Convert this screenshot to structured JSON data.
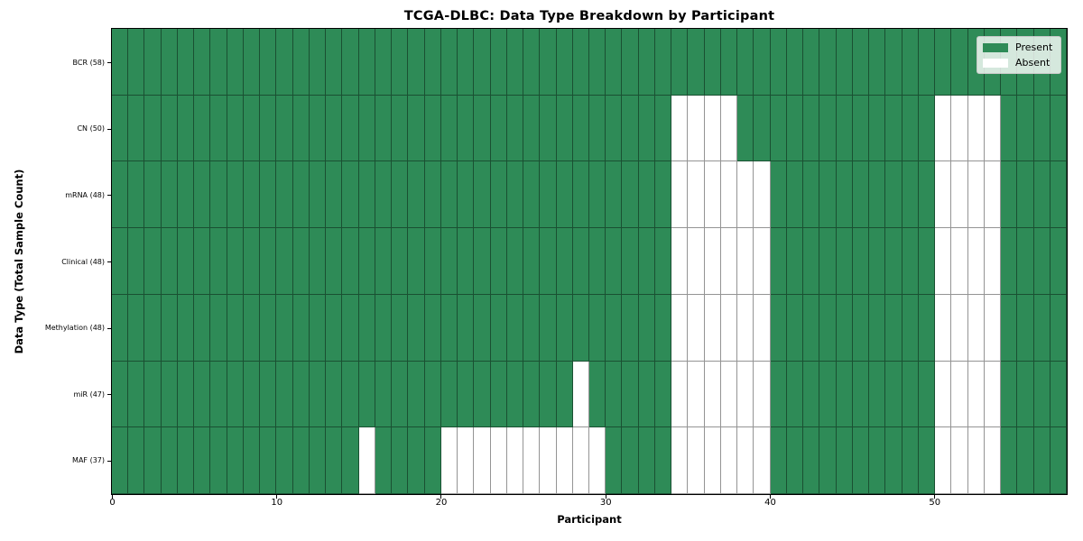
{
  "title": "TCGA-DLBC: Data Type Breakdown by Participant",
  "legend": {
    "present_label": "Present",
    "absent_label": "Absent"
  },
  "chart_data": {
    "type": "heatmap",
    "title": "TCGA-DLBC: Data Type Breakdown by Participant",
    "xlabel": "Participant",
    "ylabel": "Data Type (Total Sample Count)",
    "n_participants": 58,
    "x_range": [
      0,
      58
    ],
    "x_ticks": [
      0,
      10,
      20,
      30,
      40,
      50
    ],
    "grid": true,
    "legend_position": "upper right",
    "colors": {
      "present": "#2e8b57",
      "absent": "#ffffff"
    },
    "legend_entries": [
      {
        "label": "Present",
        "color": "#2e8b57"
      },
      {
        "label": "Absent",
        "color": "#ffffff"
      }
    ],
    "rows": [
      {
        "label": "BCR (58)",
        "data_type": "BCR",
        "present_count": 58,
        "absent_participants": []
      },
      {
        "label": "CN (50)",
        "data_type": "CN",
        "present_count": 50,
        "absent_participants": [
          34,
          35,
          36,
          37,
          50,
          51,
          52,
          53
        ]
      },
      {
        "label": "mRNA (48)",
        "data_type": "mRNA",
        "present_count": 48,
        "absent_participants": [
          34,
          35,
          36,
          37,
          38,
          39,
          50,
          51,
          52,
          53
        ]
      },
      {
        "label": "Clinical (48)",
        "data_type": "Clinical",
        "present_count": 48,
        "absent_participants": [
          34,
          35,
          36,
          37,
          38,
          39,
          50,
          51,
          52,
          53
        ]
      },
      {
        "label": "Methylation (48)",
        "data_type": "Methylation",
        "present_count": 48,
        "absent_participants": [
          34,
          35,
          36,
          37,
          38,
          39,
          50,
          51,
          52,
          53
        ]
      },
      {
        "label": "miR (47)",
        "data_type": "miR",
        "present_count": 47,
        "absent_participants": [
          28,
          34,
          35,
          36,
          37,
          38,
          39,
          50,
          51,
          52,
          53
        ]
      },
      {
        "label": "MAF (37)",
        "data_type": "MAF",
        "present_count": 37,
        "absent_participants": [
          15,
          20,
          21,
          22,
          23,
          24,
          25,
          26,
          27,
          28,
          29,
          34,
          35,
          36,
          37,
          38,
          39,
          50,
          51,
          52,
          53
        ]
      }
    ]
  }
}
